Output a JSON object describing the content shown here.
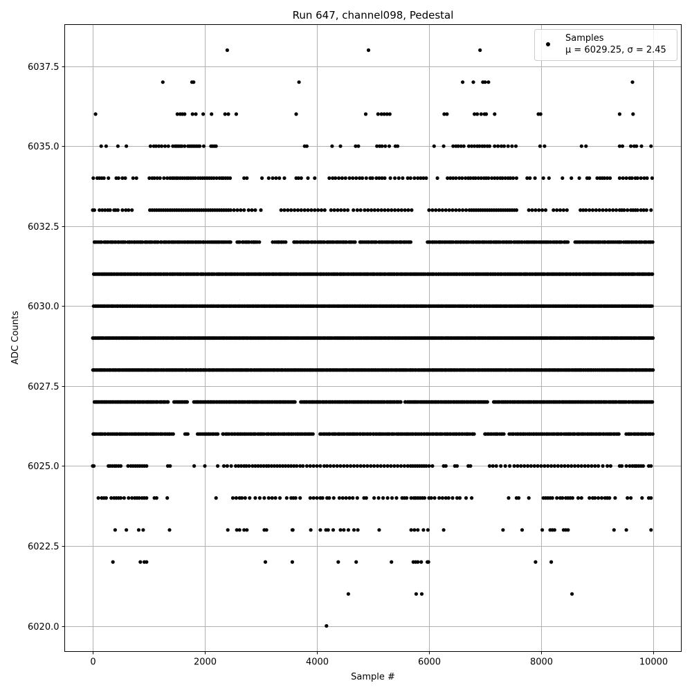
{
  "chart_data": {
    "type": "scatter",
    "title": "Run 647, channel098, Pedestal",
    "xlabel": "Sample #",
    "ylabel": "ADC Counts",
    "xlim": [
      -500,
      10500
    ],
    "ylim": [
      6019.2,
      6038.8
    ],
    "xticks": [
      0,
      2000,
      4000,
      6000,
      8000,
      10000
    ],
    "xtick_labels": [
      "0",
      "2000",
      "4000",
      "6000",
      "8000",
      "10000"
    ],
    "yticks": [
      6020.0,
      6022.5,
      6025.0,
      6027.5,
      6030.0,
      6032.5,
      6035.0,
      6037.5
    ],
    "ytick_labels": [
      "6020.0",
      "6022.5",
      "6025.0",
      "6027.5",
      "6030.0",
      "6032.5",
      "6035.0",
      "6037.5"
    ],
    "grid": true,
    "legend": {
      "placement": "top-right",
      "series_name": "Samples",
      "stats_label": "μ = 6029.25, σ = 2.45"
    },
    "series": [
      {
        "name": "Samples",
        "color": "#000000",
        "marker": "circle",
        "levels": [
          {
            "y": 6038,
            "x": [
              2400,
              4920,
              6910
            ]
          },
          {
            "y": 6037,
            "x": [
              1250,
              1770,
              1800,
              3680,
              6600,
              6790,
              6960,
              7000,
              7060,
              9630
            ]
          },
          {
            "y": 6036,
            "x": [
              50,
              1510,
              1560,
              1600,
              1640,
              1780,
              1840,
              1970,
              2120,
              2360,
              2420,
              2560,
              3630,
              4870,
              5090,
              5150,
              5200,
              5250,
              5300,
              6270,
              6320,
              6810,
              6860,
              6930,
              6990,
              7020,
              7170,
              7950,
              7990,
              9400,
              9640
            ]
          },
          {
            "y": 6035,
            "x": [
              150,
              240,
              450,
              600,
              1030,
              1090,
              1130,
              1180,
              1230,
              1290,
              1350,
              1430,
              1470,
              1500,
              1530,
              1560,
              1590,
              1640,
              1700,
              1730,
              1760,
              1790,
              1820,
              1850,
              1880,
              1910,
              1980,
              2110,
              2140,
              2170,
              2200,
              3780,
              3820,
              4270,
              4420,
              4690,
              4740,
              5070,
              5120,
              5160,
              5220,
              5290,
              5400,
              5440,
              6090,
              6260,
              6430,
              6480,
              6520,
              6570,
              6620,
              6710,
              6760,
              6810,
              6860,
              6900,
              6950,
              6990,
              7040,
              7080,
              7170,
              7230,
              7290,
              7340,
              7410,
              7480,
              7550,
              7980,
              8060,
              8720,
              8800,
              9400,
              9450,
              9600,
              9660,
              9700,
              9790,
              9960
            ]
          },
          {
            "y": 6034,
            "x": [
              10,
              80,
              120,
              160,
              200,
              280,
              420,
              460,
              530,
              580,
              720,
              780,
              1010,
              1060,
              1100,
              1150,
              1200,
              1270,
              1330,
              1380,
              1420,
              1450,
              1490,
              1520,
              1560,
              1600,
              1640,
              1680,
              1710,
              1750,
              1790,
              1830,
              1880,
              1920,
              1960,
              2000,
              2040,
              2080,
              2120,
              2160,
              2210,
              2260,
              2300,
              2330,
              2370,
              2410,
              2450,
              2700,
              2750,
              3020,
              3140,
              3210,
              3270,
              3330,
              3420,
              3630,
              3670,
              3720,
              3840,
              3960,
              4220,
              4280,
              4330,
              4390,
              4450,
              4510,
              4580,
              4640,
              4700,
              4760,
              4810,
              4880,
              4950,
              4990,
              5060,
              5110,
              5160,
              5210,
              5310,
              5390,
              5460,
              5530,
              5620,
              5670,
              5740,
              5800,
              5850,
              5900,
              5950,
              6150,
              6330,
              6380,
              6430,
              6480,
              6540,
              6590,
              6650,
              6700,
              6740,
              6790,
              6830,
              6880,
              6930,
              6980,
              7020,
              7060,
              7120,
              7170,
              7220,
              7270,
              7310,
              7360,
              7410,
              7450,
              7500,
              7560,
              7750,
              7800,
              7890,
              8040,
              8140,
              8380,
              8540,
              8680,
              8820,
              8860,
              9000,
              9050,
              9090,
              9130,
              9180,
              9230,
              9400,
              9460,
              9520,
              9580,
              9620,
              9680,
              9720,
              9780,
              9840,
              9890,
              9980
            ]
          },
          {
            "y": 6033,
            "x": [
              0,
              30,
              120,
              170,
              220,
              270,
              310,
              380,
              410,
              450,
              530,
              590,
              640,
              700,
              1020,
              1060,
              1100,
              1140,
              1180,
              1220,
              1260,
              1300,
              1340,
              1380,
              1420,
              1460,
              1500,
              1540,
              1580,
              1620,
              1660,
              1700,
              1740,
              1780,
              1820,
              1860,
              1900,
              1940,
              1980,
              2020,
              2060,
              2100,
              2140,
              2180,
              2220,
              2260,
              2300,
              2340,
              2380,
              2420,
              2460,
              2520,
              2580,
              2640,
              2700,
              2780,
              2840,
              2900,
              3000,
              3360,
              3420,
              3480,
              3540,
              3600,
              3660,
              3720,
              3780,
              3840,
              3900,
              3960,
              4020,
              4080,
              4140,
              4250,
              4310,
              4370,
              4430,
              4490,
              4550,
              4650,
              4720,
              4780,
              4850,
              4910,
              4970,
              5030,
              5090,
              5150,
              5210,
              5270,
              5330,
              5390,
              5450,
              5510,
              5570,
              5630,
              5690,
              6000,
              6060,
              6120,
              6180,
              6240,
              6300,
              6360,
              6420,
              6480,
              6540,
              6600,
              6660,
              6720,
              6760,
              6800,
              6840,
              6880,
              6920,
              6960,
              7000,
              7040,
              7080,
              7120,
              7160,
              7200,
              7240,
              7280,
              7320,
              7360,
              7400,
              7440,
              7480,
              7520,
              7560,
              7780,
              7840,
              7900,
              7960,
              8020,
              8080,
              8220,
              8280,
              8340,
              8400,
              8460,
              8700,
              8750,
              8800,
              8860,
              8920,
              8980,
              9040,
              9100,
              9160,
              9220,
              9280,
              9340,
              9400,
              9440,
              9480,
              9540,
              9600,
              9640,
              9680,
              9720,
              9780,
              9830,
              9880,
              9960
            ]
          },
          {
            "y": 6032.0,
            "dense": true,
            "from": 0,
            "to": 10000,
            "step": 28,
            "gaps": [
              [
                2460,
                2560
              ],
              [
                3000,
                3200
              ],
              [
                3450,
                3580
              ],
              [
                4700,
                4760
              ],
              [
                5700,
                5960
              ],
              [
                8480,
                8600
              ]
            ]
          },
          {
            "y": 6031.0,
            "dense": true,
            "from": 0,
            "to": 10000,
            "step": 22,
            "gaps": []
          },
          {
            "y": 6030.0,
            "dense": true,
            "from": 0,
            "to": 10000,
            "step": 20,
            "gaps": []
          },
          {
            "y": 6029.0,
            "dense": true,
            "from": 0,
            "to": 10000,
            "step": 20,
            "gaps": []
          },
          {
            "y": 6028.0,
            "dense": true,
            "from": 0,
            "to": 10000,
            "step": 18,
            "gaps": []
          },
          {
            "y": 6027.0,
            "dense": true,
            "from": 0,
            "to": 10000,
            "step": 22,
            "gaps": [
              [
                1350,
                1450
              ],
              [
                1700,
                1790
              ],
              [
                3620,
                3700
              ],
              [
                5500,
                5560
              ],
              [
                7060,
                7140
              ]
            ]
          },
          {
            "y": 6026.0,
            "dense": true,
            "from": 0,
            "to": 10000,
            "step": 26,
            "gaps": [
              [
                1440,
                1620
              ],
              [
                1700,
                1860
              ],
              [
                2240,
                2300
              ],
              [
                3940,
                4030
              ],
              [
                6820,
                6980
              ],
              [
                7340,
                7420
              ],
              [
                9400,
                9500
              ]
            ]
          },
          {
            "y": 6025,
            "x": [
              0,
              20,
              280,
              310,
              350,
              390,
              420,
              460,
              500,
              630,
              680,
              720,
              760,
              800,
              840,
              880,
              920,
              960,
              1340,
              1380,
              1810,
              2000,
              2230,
              2340,
              2400,
              2470,
              2550,
              2600,
              2650,
              2700,
              2740,
              2790,
              2850,
              2900,
              2950,
              3000,
              3050,
              3100,
              3140,
              3190,
              3240,
              3290,
              3340,
              3390,
              3440,
              3490,
              3540,
              3590,
              3640,
              3700,
              3750,
              3820,
              3880,
              3940,
              4000,
              4060,
              4130,
              4180,
              4240,
              4300,
              4360,
              4420,
              4480,
              4540,
              4600,
              4660,
              4720,
              4780,
              4840,
              4900,
              4960,
              5020,
              5080,
              5140,
              5200,
              5260,
              5320,
              5380,
              5440,
              5500,
              5560,
              5620,
              5670,
              5710,
              5750,
              5790,
              5830,
              5870,
              5910,
              5950,
              6000,
              6060,
              6260,
              6300,
              6460,
              6500,
              6700,
              6740,
              7080,
              7140,
              7200,
              7280,
              7360,
              7440,
              7520,
              7580,
              7640,
              7700,
              7760,
              7820,
              7880,
              7940,
              8000,
              8060,
              8120,
              8180,
              8240,
              8300,
              8360,
              8420,
              8480,
              8540,
              8600,
              8660,
              8720,
              8780,
              8840,
              8900,
              8960,
              9020,
              9100,
              9180,
              9240,
              9400,
              9440,
              9520,
              9580,
              9630,
              9670,
              9700,
              9740,
              9780,
              9820,
              9920,
              9960
            ]
          },
          {
            "y": 6024,
            "x": [
              100,
              160,
              200,
              240,
              330,
              380,
              420,
              460,
              500,
              560,
              640,
              700,
              750,
              790,
              830,
              880,
              920,
              960,
              1100,
              1140,
              1330,
              2200,
              2500,
              2560,
              2620,
              2660,
              2720,
              2800,
              2900,
              2980,
              3060,
              3140,
              3200,
              3260,
              3340,
              3460,
              3540,
              3580,
              3620,
              3700,
              3880,
              3940,
              4000,
              4060,
              4100,
              4180,
              4220,
              4300,
              4400,
              4460,
              4520,
              4580,
              4640,
              4720,
              4840,
              4880,
              5020,
              5100,
              5180,
              5260,
              5340,
              5420,
              5520,
              5560,
              5600,
              5680,
              5730,
              5760,
              5800,
              5840,
              5880,
              5920,
              6000,
              6040,
              6100,
              6180,
              6240,
              6300,
              6350,
              6420,
              6500,
              6550,
              6660,
              6760,
              7420,
              7560,
              7600,
              7780,
              8040,
              8080,
              8120,
              8160,
              8200,
              8280,
              8340,
              8380,
              8440,
              8480,
              8520,
              8560,
              8660,
              8720,
              8860,
              8920,
              8960,
              9020,
              9080,
              9140,
              9180,
              9220,
              9320,
              9540,
              9600,
              9800,
              9920,
              9960
            ]
          },
          {
            "y": 6023,
            "x": [
              400,
              600,
              820,
              900,
              1370,
              2410,
              2570,
              2620,
              2700,
              2750,
              3060,
              3100,
              3560,
              3570,
              3890,
              4060,
              4160,
              4200,
              4290,
              4420,
              4480,
              4560,
              4660,
              4730,
              5110,
              5680,
              5740,
              5800,
              5900,
              5980,
              6260,
              7320,
              7660,
              8020,
              8160,
              8200,
              8240,
              8400,
              8440,
              8480,
              9300,
              9520,
              9960
            ]
          },
          {
            "y": 6022,
            "x": [
              360,
              850,
              920,
              960,
              3080,
              3560,
              4380,
              4700,
              5330,
              5720,
              5760,
              5800,
              5860,
              5970,
              5990,
              7900,
              8180
            ]
          },
          {
            "y": 6021,
            "x": [
              4560,
              5770,
              5870,
              8550
            ]
          },
          {
            "y": 6020,
            "x": [
              4170
            ]
          }
        ]
      }
    ]
  }
}
